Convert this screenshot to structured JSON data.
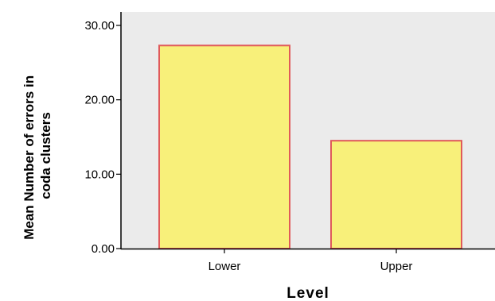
{
  "chart_data": {
    "type": "bar",
    "categories": [
      "Lower",
      "Upper"
    ],
    "values": [
      27.3,
      14.5
    ],
    "title": "",
    "xlabel": "Level",
    "ylabel_lines": [
      "Mean Number of errors in",
      "coda clusters"
    ],
    "ylim": [
      0,
      30
    ],
    "yticks": [
      "0.00",
      "10.00",
      "20.00",
      "30.00"
    ],
    "grid": false,
    "colors": {
      "plot_background": "#ebebeb",
      "bar_fill": "#f8f07a",
      "bar_stroke": "#e05a5a"
    }
  }
}
